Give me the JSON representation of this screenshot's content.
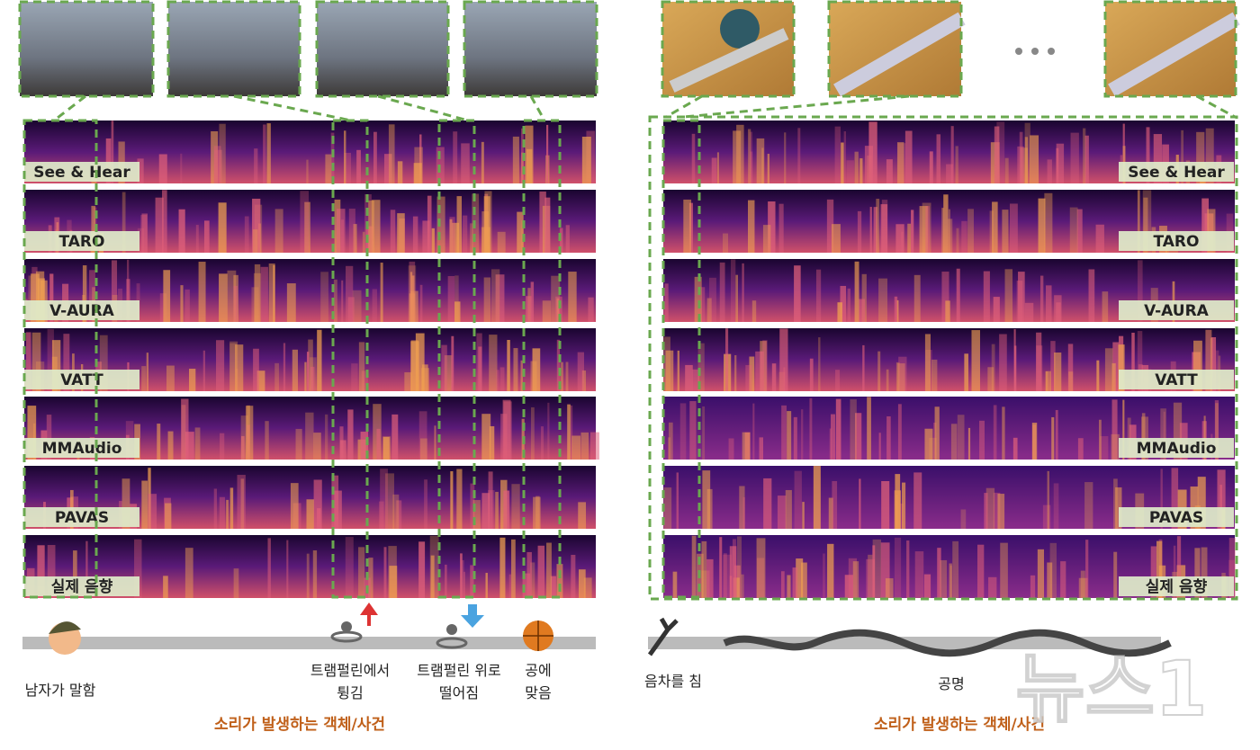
{
  "left_panel": {
    "methods": [
      "See & Hear",
      "TARO",
      "V-AURA",
      "VATT",
      "MMAudio",
      "PAVAS",
      "실제 음향"
    ],
    "events": [
      [
        "남자가 말함"
      ],
      [
        "트램펄린에서",
        "튕김"
      ],
      [
        "트램펄린 위로",
        "떨어짐"
      ],
      [
        "공에",
        "맞음"
      ]
    ],
    "caption": "소리가 발생하는 객체/사건"
  },
  "right_panel": {
    "methods": [
      "See & Hear",
      "TARO",
      "V-AURA",
      "VATT",
      "MMAudio",
      "PAVAS",
      "실제 음향"
    ],
    "events": [
      [
        "음차를 침"
      ],
      [
        "공명"
      ]
    ],
    "caption": "소리가 발생하는 객체/사건"
  },
  "watermark": "뉴스1"
}
